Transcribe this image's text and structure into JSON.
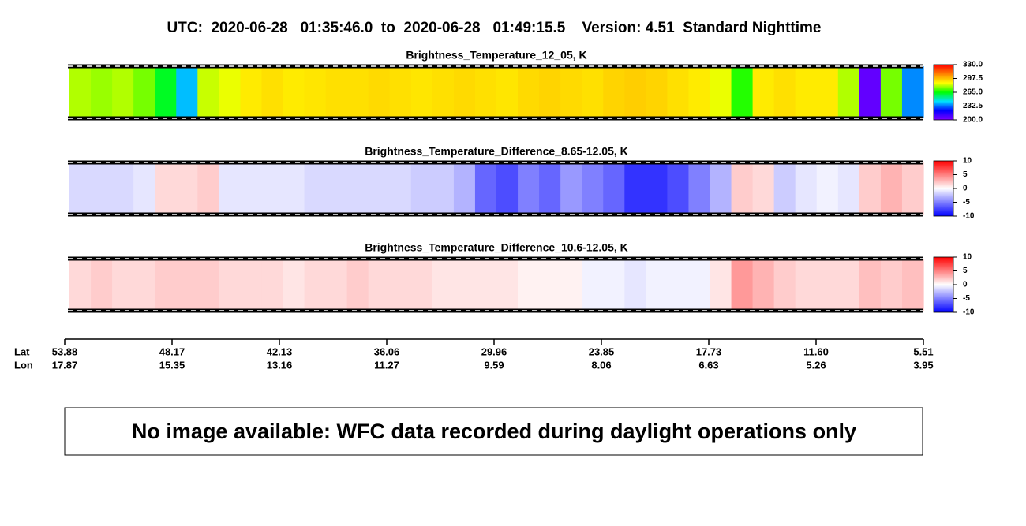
{
  "title": "UTC:  2020-06-28   01:35:46.0  to  2020-06-28   01:49:15.5    Version: 4.51  Standard Nighttime",
  "chart_data": [
    {
      "type": "heatmap",
      "title": "Brightness_Temperature_12_05, K",
      "values": [
        280,
        278,
        280,
        275,
        262,
        240,
        282,
        285,
        290,
        292,
        290,
        291,
        292,
        292,
        293,
        292,
        291,
        292,
        293,
        292,
        291,
        293,
        294,
        293,
        292,
        294,
        295,
        294,
        292,
        290,
        285,
        268,
        290,
        292,
        290,
        290,
        280,
        205,
        275,
        235
      ],
      "colors": [
        "#8000ff",
        "#0000ff",
        "#00e0ff",
        "#00ff00",
        "#ffff00",
        "#ff8000",
        "#ff0000"
      ],
      "clim": [
        200,
        330
      ],
      "cticks": [
        {
          "value": 330,
          "label": "330.0"
        },
        297.5,
        {
          "value": 265,
          "label": "265.0"
        },
        232.5,
        {
          "value": 200,
          "label": "200.0"
        }
      ]
    },
    {
      "type": "heatmap",
      "title": "Brightness_Temperature_Difference_8.65-12.05, K",
      "values": [
        -1.5,
        -1.5,
        -1.5,
        -1,
        1.5,
        1.5,
        2,
        -1,
        -1,
        -1,
        -1,
        -1.5,
        -1.5,
        -1.5,
        -1.5,
        -1.5,
        -2,
        -2,
        -3,
        -6,
        -7,
        -5,
        -6,
        -4,
        -5,
        -6,
        -8,
        -8,
        -7,
        -5,
        -3,
        2,
        1.5,
        -2,
        -1,
        -0.5,
        -1,
        2,
        3,
        2
      ],
      "colors": [
        "#0000ff",
        "#ffffff",
        "#ff0000"
      ],
      "clim": [
        -10,
        10
      ],
      "cticks": [
        10,
        5,
        0,
        -5,
        -10
      ]
    },
    {
      "type": "heatmap",
      "title": "Brightness_Temperature_Difference_10.6-12.05, K",
      "values": [
        1.5,
        2,
        1.5,
        1.5,
        2,
        2,
        2,
        1.5,
        1.5,
        1.5,
        1,
        1.5,
        1.5,
        2,
        1.5,
        1.5,
        1.5,
        1,
        1,
        1,
        1,
        0.5,
        0.5,
        0.5,
        -0.5,
        -0.5,
        -1,
        -0.5,
        -0.5,
        -0.5,
        1,
        4,
        3,
        2,
        1.5,
        1.5,
        1.5,
        2.5,
        2,
        2.5
      ],
      "colors": [
        "#0000ff",
        "#ffffff",
        "#ff0000"
      ],
      "clim": [
        -10,
        10
      ],
      "cticks": [
        10,
        5,
        0,
        -5,
        -10
      ]
    }
  ],
  "track": {
    "row_labels": [
      "Lat",
      "Lon"
    ],
    "lat": [
      "53.88",
      "48.17",
      "42.13",
      "36.06",
      "29.96",
      "23.85",
      "17.73",
      "11.60",
      "5.51"
    ],
    "lon": [
      "17.87",
      "15.35",
      "13.16",
      "11.27",
      "9.59",
      "8.06",
      "6.63",
      "5.26",
      "3.95"
    ]
  },
  "note": "No image available: WFC data recorded during daylight operations only"
}
